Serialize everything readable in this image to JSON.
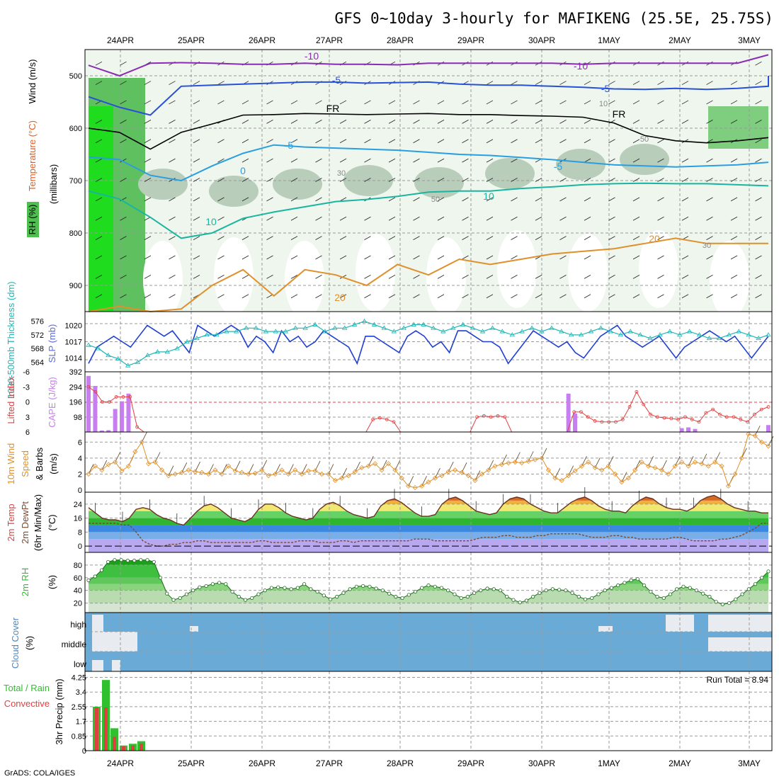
{
  "title": "GFS 0~10day 3-hourly for MAFIKENG (25.5E, 25.75S)",
  "footer": "GrADS: COLA/IGES",
  "colors": {
    "grid": "#9a9a9a",
    "rh_green": "#2fbf2f",
    "cloud_blue": "#6aaad6",
    "slp_blue": "#1f3fd0",
    "thk_cyan": "#22b5b5",
    "cape_purple": "#c77ff0",
    "li_red": "#e04040",
    "wind_orange": "#e0902a",
    "precip_green": "#2fbf2f",
    "precip_red": "#e04040"
  },
  "chart_data": [
    {
      "panel": "cross-section",
      "type": "heatmap",
      "x_ticks": [
        "24APR",
        "25APR",
        "26APR",
        "27APR",
        "28APR",
        "29APR",
        "30APR",
        "1MAY",
        "2MAY",
        "3MAY"
      ],
      "ylabel": "(millibars)",
      "legend": [
        "RH (%)",
        "Temperature (°C)",
        "Wind (m/s)"
      ],
      "y_ticks": [
        "500",
        "600",
        "700",
        "800",
        "900"
      ],
      "ylim": [
        450,
        950
      ],
      "contour_labels": [
        "-10",
        "-10",
        "-5",
        "-5",
        "FR",
        "FR",
        "-5",
        "-5",
        "0",
        "10",
        "10",
        "20",
        "20",
        "30",
        "30",
        "50",
        "50",
        "10"
      ],
      "contours": [
        {
          "label": "-10",
          "color": "#8a2ab5",
          "y": [
            480,
            500,
            476,
            475,
            476,
            478,
            478,
            476,
            478,
            478,
            479,
            476,
            476,
            476,
            476,
            476,
            478,
            476,
            476,
            476,
            476,
            476,
            460
          ]
        },
        {
          "label": "-5",
          "color": "#2a50d8",
          "y": [
            540,
            560,
            575,
            520,
            518,
            516,
            514,
            512,
            512,
            514,
            513,
            512,
            516,
            518,
            518,
            520,
            522,
            525,
            526,
            524,
            526,
            524,
            520,
            500
          ]
        },
        {
          "label": "FR",
          "color": "#000000",
          "y": [
            600,
            608,
            640,
            608,
            592,
            575,
            574,
            572,
            573,
            574,
            573,
            572,
            574,
            574,
            576,
            577,
            579,
            590,
            614,
            624,
            628,
            624,
            618
          ]
        },
        {
          "label": "5",
          "color": "#2a9ee0",
          "y": [
            655,
            660,
            690,
            700,
            672,
            648,
            632,
            636,
            638,
            640,
            642,
            646,
            650,
            652,
            656,
            660,
            665,
            670,
            672,
            674,
            672,
            670,
            665
          ]
        },
        {
          "label": "10",
          "color": "#1ab5a0",
          "y": [
            720,
            735,
            770,
            810,
            800,
            772,
            760,
            750,
            740,
            736,
            730,
            722,
            720,
            720,
            715,
            712,
            708,
            706,
            705,
            706,
            706,
            708,
            710
          ]
        },
        {
          "label": "20",
          "color": "#e0902a",
          "y": [
            950,
            940,
            950,
            945,
            900,
            870,
            920,
            870,
            880,
            900,
            860,
            880,
            850,
            860,
            850,
            840,
            835,
            830,
            820,
            810,
            820,
            820,
            820
          ]
        }
      ]
    },
    {
      "panel": "SLP & Thickness",
      "type": "line",
      "ylabel_left": "1000-500mb Thickness (dm)",
      "ylabel_right": "SLP (mb)",
      "y_ticks_left": [
        "576",
        "572",
        "568",
        "564"
      ],
      "y_ticks_right": [
        "1020",
        "1017",
        "1014"
      ],
      "series": [
        {
          "name": "SLP (mb)",
          "values": [
            1013,
            1016,
            1017,
            1018,
            1017,
            1016,
            1018,
            1020,
            1019,
            1018,
            1019,
            1017,
            1015,
            1020,
            1019,
            1018,
            1019,
            1020,
            1019,
            1016,
            1018,
            1017,
            1015,
            1019,
            1017,
            1018,
            1016,
            1017,
            1019,
            1018,
            1017,
            1016,
            1013,
            1018,
            1018,
            1017,
            1016,
            1015,
            1018,
            1019,
            1018,
            1016,
            1017,
            1015,
            1019,
            1019,
            1018,
            1017,
            1017,
            1016,
            1013,
            1015,
            1017,
            1019,
            1018,
            1017,
            1016,
            1017,
            1015,
            1014,
            1016,
            1018,
            1019,
            1020,
            1018,
            1017,
            1016,
            1017,
            1018,
            1016,
            1014,
            1016,
            1017,
            1018,
            1019,
            1018,
            1017,
            1018,
            1016,
            1014,
            1016,
            1018
          ]
        },
        {
          "name": "1000-500mb Thickness",
          "values": [
            569,
            568,
            566,
            565,
            563,
            564,
            566,
            567,
            567,
            568,
            570,
            571,
            572,
            572,
            573,
            573,
            574,
            574,
            573,
            573,
            573,
            574,
            574,
            575,
            573,
            574,
            574,
            575,
            576,
            575,
            574,
            573,
            574,
            575,
            575,
            574,
            573,
            574,
            575,
            574,
            573,
            574,
            573,
            572,
            573,
            574,
            573,
            574,
            573,
            572,
            572,
            573,
            574,
            573,
            572,
            573,
            572,
            571,
            572,
            573,
            572,
            573,
            572,
            571,
            571,
            572,
            573,
            572,
            571,
            572
          ]
        }
      ]
    },
    {
      "panel": "CAPE & Lifted Index",
      "type": "bar",
      "ylabel_left": "Lifted Index",
      "ylabel_right": "CAPE (J/kg)",
      "y_ticks_left": [
        "-6",
        "-3",
        "0",
        "3",
        "6"
      ],
      "y_ticks_right": [
        "392",
        "294",
        "196",
        "98"
      ],
      "series": [
        {
          "name": "CAPE (J/kg)",
          "values": [
            365,
            300,
            10,
            12,
            150,
            200,
            250,
            0,
            0,
            0,
            0,
            0,
            0,
            0,
            0,
            0,
            0,
            0,
            0,
            0,
            0,
            0,
            0,
            0,
            0,
            0,
            0,
            0,
            0,
            0,
            0,
            0,
            0,
            0,
            0,
            0,
            0,
            0,
            0,
            0,
            0,
            0,
            0,
            0,
            0,
            0,
            0,
            0,
            0,
            0,
            0,
            0,
            0,
            0,
            0,
            0,
            0,
            0,
            0,
            0,
            0,
            0,
            0,
            0,
            0,
            0,
            0,
            0,
            0,
            0,
            0,
            0,
            250,
            120,
            0,
            0,
            0,
            0,
            0,
            0,
            0,
            0,
            0,
            0,
            0,
            0,
            0,
            0,
            0,
            25,
            30,
            20,
            0,
            0,
            0,
            0,
            0,
            0,
            0,
            0,
            0,
            0,
            45
          ]
        },
        {
          "name": "Lifted Index",
          "values": [
            -3,
            -2,
            0,
            0,
            -1,
            -1,
            -1,
            5,
            6,
            6,
            6,
            6,
            6,
            6,
            6,
            6,
            6,
            6,
            6,
            6,
            6,
            6,
            6,
            6,
            6,
            6,
            6,
            6,
            6,
            6,
            6,
            6,
            6,
            6,
            6,
            6,
            6,
            6,
            6,
            6,
            6,
            3.5,
            3.2,
            3.5,
            4,
            6,
            6,
            6,
            6,
            6,
            6,
            6,
            6,
            6,
            6,
            6,
            3,
            2.8,
            3,
            2.8,
            3,
            6,
            6,
            6,
            6,
            6,
            6,
            6,
            6,
            6,
            2,
            2,
            3,
            3.8,
            4,
            4,
            4,
            3.5,
            1,
            -2,
            0.5,
            2.5,
            3,
            3.2,
            3.3,
            3.5,
            3,
            3.5,
            4,
            2.2,
            1.5,
            2.5,
            3,
            3,
            3.5,
            4,
            2.5,
            1.5,
            1
          ]
        }
      ]
    },
    {
      "panel": "10m Wind Speed & Barbs",
      "type": "line",
      "ylabel": "10m Wind Speed & Barbs (m/s)",
      "y_ticks": [
        "6",
        "4",
        "2",
        "0"
      ],
      "series": [
        {
          "name": "10m Wind Speed",
          "values": [
            2.0,
            3.0,
            2.5,
            3.2,
            3.5,
            2.4,
            3.0,
            4.8,
            6.0,
            3.3,
            3.5,
            2.5,
            1.8,
            2.0,
            2.2,
            2.5,
            2.3,
            2.2,
            2.0,
            2.5,
            2.0,
            3.0,
            2.4,
            2.2,
            2.0,
            2.1,
            2.5,
            1.8,
            2.0,
            2.5,
            2.0,
            2.5,
            2.0,
            2.4,
            2.4,
            2.0,
            2.0,
            1.2,
            1.5,
            1.8,
            2.3,
            2.8,
            3.0,
            3.3,
            2.5,
            3.3,
            2.5,
            1.5,
            0.5,
            0.3,
            0.5,
            1.0,
            1.5,
            1.8,
            2.3,
            2.5,
            2.2,
            1.8,
            1.2,
            2.0,
            2.5,
            3.0,
            3.2,
            3.4,
            3.5,
            3.4,
            3.6,
            3.8,
            4.0,
            2.5,
            1.5,
            1.2,
            1.8,
            2.4,
            3.0,
            3.5,
            2.8,
            2.5,
            3.0,
            2.0,
            1.0,
            1.5,
            2.5,
            3.5,
            3.0,
            2.8,
            2.5,
            2.0,
            3.0,
            3.5,
            3.0,
            3.5,
            3.3,
            3.0,
            3.5,
            3.0,
            0.5,
            2.0,
            4.0,
            7.0,
            6.8,
            6.0,
            5.5
          ]
        }
      ]
    },
    {
      "panel": "2m Temp & DewPt",
      "type": "area",
      "ylabel": "2m Temp 2m DewPt (6hr Min/Max) (°C)",
      "y_ticks": [
        "24",
        "16",
        "8",
        "0"
      ],
      "series": [
        {
          "name": "2m Temp",
          "values": [
            22,
            19,
            16,
            15,
            15,
            14,
            16,
            21,
            22,
            21,
            18,
            16,
            15,
            13,
            12,
            16,
            20,
            23,
            24,
            22,
            19,
            16,
            15,
            14,
            16,
            21,
            24,
            24,
            22,
            19,
            17,
            16,
            15,
            16,
            21,
            24,
            25,
            23,
            20,
            18,
            17,
            16,
            17,
            23,
            26,
            27,
            25,
            22,
            19,
            17,
            17,
            18,
            24,
            27,
            28,
            26,
            23,
            20,
            19,
            18,
            19,
            24,
            27,
            28,
            27,
            24,
            22,
            20,
            19,
            19,
            22,
            25,
            27,
            28,
            26,
            23,
            21,
            20,
            20,
            19,
            23,
            26,
            28,
            27,
            24,
            22,
            21,
            21,
            20,
            22,
            26,
            28,
            29,
            27,
            24,
            22,
            21,
            20,
            20,
            19,
            19
          ]
        },
        {
          "name": "2m DewPt",
          "values": [
            13,
            13,
            13,
            13,
            13,
            12,
            12,
            8,
            3,
            1,
            0,
            0,
            1,
            1,
            2,
            2,
            3,
            3,
            2,
            2,
            2,
            2,
            2,
            2,
            2,
            3,
            3,
            2,
            2,
            2,
            2,
            3,
            3,
            3,
            2,
            2,
            2,
            3,
            3,
            2,
            3,
            3,
            3,
            3,
            3,
            3,
            3,
            3,
            4,
            4,
            4,
            3,
            3,
            3,
            3,
            3,
            3,
            4,
            5,
            5,
            5,
            6,
            6,
            5,
            5,
            5,
            6,
            6,
            7,
            7,
            7,
            7,
            7,
            6,
            5,
            5,
            5,
            6,
            6,
            5,
            5,
            4,
            4,
            4,
            4,
            4,
            5,
            5,
            4,
            3,
            3,
            3,
            3,
            4,
            4,
            5,
            6,
            8,
            10,
            13,
            13
          ]
        }
      ]
    },
    {
      "panel": "2m RH",
      "type": "area",
      "ylabel": "2m RH (%)",
      "y_ticks": [
        "80",
        "60",
        "40",
        "20"
      ],
      "series": [
        {
          "name": "2m RH",
          "values": [
            56,
            62,
            72,
            85,
            88,
            88,
            87,
            87,
            88,
            88,
            85,
            60,
            35,
            25,
            28,
            34,
            40,
            45,
            47,
            50,
            52,
            50,
            38,
            30,
            25,
            28,
            34,
            40,
            44,
            45,
            44,
            42,
            44,
            50,
            42,
            38,
            32,
            26,
            30,
            36,
            42,
            46,
            47,
            46,
            43,
            40,
            35,
            30,
            28,
            33,
            38,
            44,
            48,
            46,
            44,
            40,
            34,
            28,
            30,
            36,
            40,
            43,
            42,
            40,
            30,
            25,
            21,
            24,
            30,
            36,
            40,
            42,
            41,
            40,
            36,
            30,
            26,
            28,
            34,
            40,
            44,
            48,
            52,
            56,
            58,
            48,
            38,
            30,
            28,
            34,
            42,
            46,
            44,
            40,
            35,
            30,
            22,
            18,
            20,
            26,
            34,
            42,
            50,
            60,
            70
          ]
        }
      ]
    },
    {
      "panel": "Cloud Cover",
      "type": "heatmap",
      "ylabel": "Cloud Cover (%)",
      "y_ticks": [
        "high",
        "middle",
        "low"
      ],
      "rows": [
        "high",
        "middle",
        "low"
      ]
    },
    {
      "panel": "3hr Precip",
      "type": "bar",
      "ylabel": "3hr Precip (mm)",
      "legend": [
        "Total / Rain",
        "Convective"
      ],
      "annotation": "Run Total = 8.94",
      "y_ticks": [
        "4.25",
        "3.4",
        "2.55",
        "1.7",
        "0.85",
        "0"
      ],
      "ylim": [
        0,
        4.25
      ],
      "series": [
        {
          "name": "Total / Rain",
          "values": [
            2.55,
            4.1,
            1.3,
            0.3,
            0.4,
            0.55
          ]
        },
        {
          "name": "Convective",
          "values": [
            2.5,
            2.5,
            0.8,
            0.25,
            0.3,
            0.4
          ]
        }
      ]
    }
  ]
}
